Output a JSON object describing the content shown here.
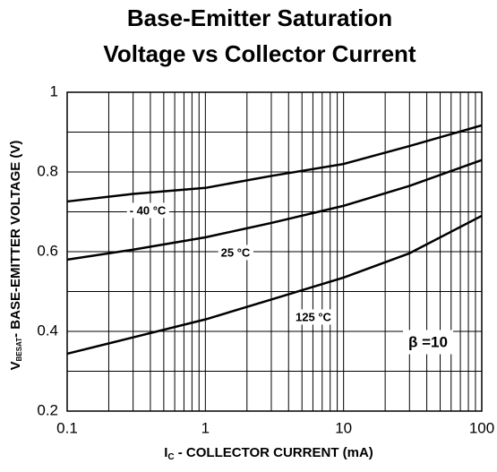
{
  "chart_data": {
    "type": "line",
    "title": [
      "Base-Emitter Saturation",
      "Voltage vs Collector Current"
    ],
    "x_label": {
      "main": "I",
      "sub": "C",
      "rest": " - COLLECTOR CURRENT  (mA)"
    },
    "y_label": {
      "main": "V",
      "sub": "BESAT",
      "rest": "- BASE-EMITTER  VOLTAGE (V)"
    },
    "x": [
      0.1,
      0.3,
      1,
      3,
      10,
      30,
      100
    ],
    "series": [
      {
        "name": "- 40 °C",
        "color": "#000000",
        "values": [
          0.726,
          0.745,
          0.76,
          0.79,
          0.82,
          0.865,
          0.917
        ]
      },
      {
        "name": "25 °C",
        "color": "#000000",
        "values": [
          0.58,
          0.605,
          0.636,
          0.672,
          0.715,
          0.765,
          0.83
        ]
      },
      {
        "name": "125 °C",
        "color": "#000000",
        "values": [
          0.344,
          0.385,
          0.43,
          0.48,
          0.535,
          0.596,
          0.69
        ]
      }
    ],
    "annotation": "β  =10",
    "xlim": [
      0.1,
      100
    ],
    "ylim": [
      0.2,
      1
    ],
    "xticks": [
      0.1,
      1,
      10,
      100
    ],
    "yticks": [
      0.2,
      0.4,
      0.6,
      0.8,
      1
    ],
    "yminor": [
      0.3,
      0.5,
      0.7,
      0.9
    ],
    "xscale": "log",
    "grid": true
  }
}
